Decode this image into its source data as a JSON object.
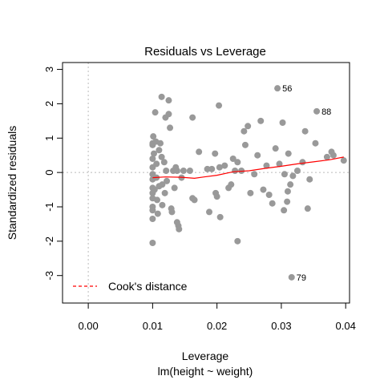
{
  "chart_data": {
    "type": "scatter",
    "title": "Residuals vs Leverage",
    "xlabel": "Leverage",
    "subtitle": "lm(height ~ weight)",
    "ylabel": "Standardized residuals",
    "xlim": [
      -0.004,
      0.0406
    ],
    "ylim": [
      -3.8,
      3.2
    ],
    "xticks": [
      0.0,
      0.01,
      0.02,
      0.03,
      0.04
    ],
    "xtick_labels": [
      "0.00",
      "0.01",
      "0.02",
      "0.03",
      "0.04"
    ],
    "yticks": [
      -3,
      -2,
      -1,
      0,
      1,
      2,
      3
    ],
    "ytick_labels": [
      "-3",
      "-2",
      "-1",
      "0",
      "1",
      "2",
      "3"
    ],
    "grid": false,
    "reference_lines": {
      "h": 0,
      "v": 0,
      "style": "dotted",
      "color": "#bbbbbb"
    },
    "point_color": "#999999",
    "smooth_color": "#ff0000",
    "points": [
      [
        0.01,
        0.85
      ],
      [
        0.01,
        0.8
      ],
      [
        0.01,
        0.4
      ],
      [
        0.01,
        0.15
      ],
      [
        0.01,
        -0.05
      ],
      [
        0.01,
        -0.2
      ],
      [
        0.01,
        -0.45
      ],
      [
        0.01,
        -0.6
      ],
      [
        0.01,
        -0.75
      ],
      [
        0.01,
        -1.0
      ],
      [
        0.01,
        -1.1
      ],
      [
        0.01,
        -1.35
      ],
      [
        0.01,
        -2.05
      ],
      [
        0.0101,
        1.05
      ],
      [
        0.0102,
        0.55
      ],
      [
        0.0103,
        -0.5
      ],
      [
        0.0104,
        1.75
      ],
      [
        0.0105,
        0.9
      ],
      [
        0.0106,
        0.25
      ],
      [
        0.0106,
        -0.15
      ],
      [
        0.0107,
        -0.8
      ],
      [
        0.0108,
        -1.2
      ],
      [
        0.011,
        0.65
      ],
      [
        0.011,
        -0.4
      ],
      [
        0.0112,
        0.85
      ],
      [
        0.0114,
        2.2
      ],
      [
        0.0114,
        0.45
      ],
      [
        0.0115,
        -0.35
      ],
      [
        0.0115,
        -0.95
      ],
      [
        0.0118,
        0.3
      ],
      [
        0.0119,
        -0.6
      ],
      [
        0.012,
        1.6
      ],
      [
        0.0121,
        0.05
      ],
      [
        0.0122,
        -0.25
      ],
      [
        0.0125,
        2.1
      ],
      [
        0.0125,
        1.7
      ],
      [
        0.0127,
        1.3
      ],
      [
        0.0129,
        -1.05
      ],
      [
        0.013,
        -1.15
      ],
      [
        0.0132,
        0.05
      ],
      [
        0.0134,
        -0.45
      ],
      [
        0.0136,
        0.15
      ],
      [
        0.0138,
        0.05
      ],
      [
        0.0138,
        -1.45
      ],
      [
        0.014,
        -1.55
      ],
      [
        0.0141,
        -1.65
      ],
      [
        0.0145,
        -0.15
      ],
      [
        0.0148,
        0.05
      ],
      [
        0.0158,
        0.05
      ],
      [
        0.0162,
        1.6
      ],
      [
        0.0162,
        -0.75
      ],
      [
        0.0165,
        -0.8
      ],
      [
        0.0172,
        0.6
      ],
      [
        0.0185,
        0.1
      ],
      [
        0.0188,
        -1.15
      ],
      [
        0.0192,
        0.1
      ],
      [
        0.0197,
        0.55
      ],
      [
        0.0198,
        -0.6
      ],
      [
        0.02,
        -0.7
      ],
      [
        0.0203,
        1.95
      ],
      [
        0.0204,
        0.15
      ],
      [
        0.0205,
        -1.3
      ],
      [
        0.0212,
        0.2
      ],
      [
        0.0218,
        -0.45
      ],
      [
        0.0222,
        -0.35
      ],
      [
        0.0225,
        0.4
      ],
      [
        0.0228,
        0.05
      ],
      [
        0.0232,
        0.3
      ],
      [
        0.0232,
        -2.0
      ],
      [
        0.0238,
        0.05
      ],
      [
        0.0242,
        1.2
      ],
      [
        0.0244,
        0.8
      ],
      [
        0.0248,
        1.35
      ],
      [
        0.0252,
        -0.6
      ],
      [
        0.0258,
        -0.05
      ],
      [
        0.0263,
        0.5
      ],
      [
        0.0268,
        1.5
      ],
      [
        0.0272,
        -0.5
      ],
      [
        0.0277,
        0.2
      ],
      [
        0.0281,
        -0.65
      ],
      [
        0.0286,
        -0.9
      ],
      [
        0.0291,
        0.7
      ],
      [
        0.0294,
        2.45
      ],
      [
        0.0297,
        0.25
      ],
      [
        0.0302,
        1.45
      ],
      [
        0.0304,
        -1.1
      ],
      [
        0.0305,
        -0.05
      ],
      [
        0.0309,
        -0.85
      ],
      [
        0.031,
        -0.55
      ],
      [
        0.0311,
        0.55
      ],
      [
        0.0314,
        -0.35
      ],
      [
        0.0316,
        -3.05
      ],
      [
        0.0318,
        -0.1
      ],
      [
        0.0325,
        0.05
      ],
      [
        0.0333,
        0.3
      ],
      [
        0.0337,
        1.2
      ],
      [
        0.0341,
        -1.05
      ],
      [
        0.0344,
        -0.2
      ],
      [
        0.0353,
        0.85
      ],
      [
        0.0355,
        1.78
      ],
      [
        0.0371,
        0.45
      ],
      [
        0.0378,
        0.6
      ],
      [
        0.0381,
        0.5
      ],
      [
        0.0397,
        0.35
      ]
    ],
    "smooth_line": [
      [
        0.01,
        -0.15
      ],
      [
        0.012,
        -0.13
      ],
      [
        0.0145,
        -0.14
      ],
      [
        0.0165,
        -0.17
      ],
      [
        0.018,
        -0.13
      ],
      [
        0.02,
        -0.08
      ],
      [
        0.0225,
        0.02
      ],
      [
        0.025,
        0.05
      ],
      [
        0.0275,
        0.12
      ],
      [
        0.03,
        0.18
      ],
      [
        0.0325,
        0.25
      ],
      [
        0.035,
        0.31
      ],
      [
        0.0375,
        0.37
      ],
      [
        0.0397,
        0.45
      ]
    ],
    "annotations": [
      {
        "label": "56",
        "x": 0.0294,
        "y": 2.45
      },
      {
        "label": "88",
        "x": 0.0355,
        "y": 1.78
      },
      {
        "label": "79",
        "x": 0.0316,
        "y": -3.05
      }
    ],
    "legend": {
      "entries": [
        {
          "label": "Cook's distance",
          "line_style": "dashed",
          "color": "#ff0000"
        }
      ],
      "position": "bottom-left"
    }
  }
}
